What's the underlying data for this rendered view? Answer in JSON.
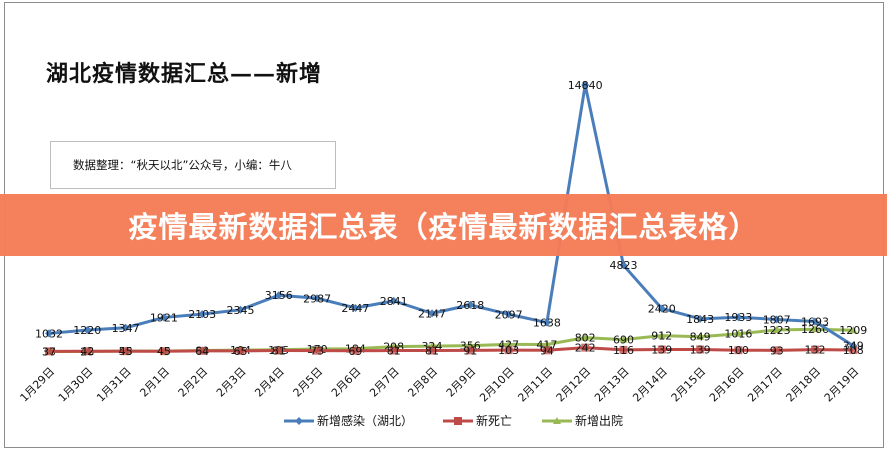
{
  "chart_data": {
    "type": "line",
    "title": "湖北疫情数据汇总——新增",
    "subtitle": "数据整理：“秋天以北”公众号，小编：牛八",
    "xlabel": "",
    "ylabel": "",
    "grid": false,
    "legend_position": "bottom",
    "categories": [
      "1月29日",
      "1月30日",
      "1月31日",
      "2月1日",
      "2月2日",
      "2月3日",
      "2月4日",
      "2月5日",
      "2月6日",
      "2月7日",
      "2月8日",
      "2月9日",
      "2月10日",
      "2月11日",
      "2月12日",
      "2月13日",
      "2月14日",
      "2月15日",
      "2月16日",
      "2月17日",
      "2月18日",
      "2月19日"
    ],
    "series": [
      {
        "name": "新增感染（湖北）",
        "color": "#4a7ebb",
        "marker": "diamond",
        "values": [
          1032,
          1220,
          1347,
          1921,
          2103,
          2345,
          3156,
          2987,
          2447,
          2841,
          2147,
          2618,
          2097,
          1638,
          14840,
          4823,
          2420,
          1843,
          1933,
          1807,
          1693,
          349
        ]
      },
      {
        "name": "新死亡",
        "color": "#be4b48",
        "marker": "square",
        "values": [
          37,
          42,
          45,
          45,
          64,
          65,
          81,
          73,
          69,
          81,
          81,
          91,
          103,
          94,
          242,
          116,
          139,
          139,
          100,
          93,
          132,
          108
        ]
      },
      {
        "name": "新增出院",
        "color": "#98b954",
        "marker": "triangle",
        "values": [
          30,
          26,
          58,
          49,
          80,
          104,
          125,
          170,
          184,
          298,
          324,
          356,
          427,
          417,
          802,
          690,
          912,
          849,
          1016,
          1223,
          1266,
          1209
        ]
      }
    ],
    "ylim": [
      0,
      14840
    ]
  },
  "header": {
    "title": "湖北疫情数据汇总——新增",
    "note": "数据整理：“秋天以北”公众号，小编：牛八"
  },
  "banner": {
    "text": "疫情最新数据汇总表（疫情最新数据汇总表格）",
    "color": "#f47c57"
  },
  "legend": {
    "items": [
      {
        "label": "新增感染（湖北）"
      },
      {
        "label": "新死亡"
      },
      {
        "label": "新增出院"
      }
    ]
  }
}
